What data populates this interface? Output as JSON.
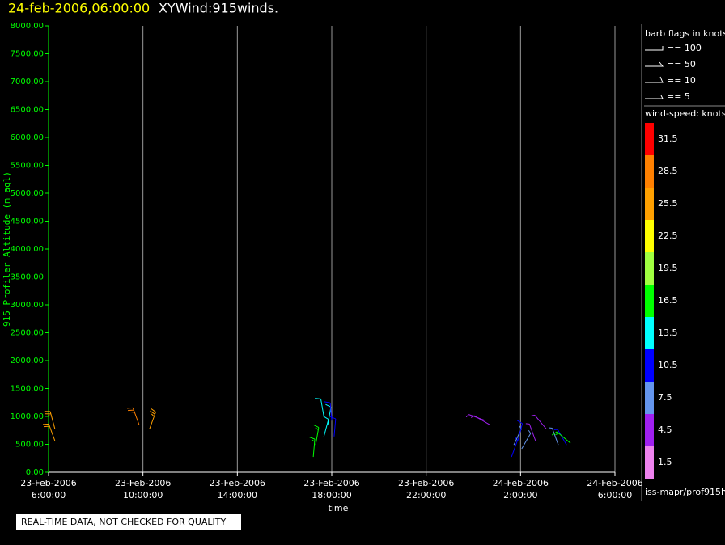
{
  "chart_data": {
    "type": "barbs",
    "title_time": "24-feb-2006,06:00:00",
    "title": "XYWind:915winds.",
    "y_label": "915 Profiler Altitude (m agl)",
    "x_label": "time",
    "xlim": [
      "2006-02-23T06:00",
      "2006-02-24T06:00"
    ],
    "xticks": [
      {
        "value": "2006-02-23T06:00",
        "label": [
          "23-Feb-2006",
          "6:00:00"
        ]
      },
      {
        "value": "2006-02-23T10:00",
        "label": [
          "23-Feb-2006",
          "10:00:00"
        ]
      },
      {
        "value": "2006-02-23T14:00",
        "label": [
          "23-Feb-2006",
          "14:00:00"
        ]
      },
      {
        "value": "2006-02-23T18:00",
        "label": [
          "23-Feb-2006",
          "18:00:00"
        ]
      },
      {
        "value": "2006-02-23T22:00",
        "label": [
          "23-Feb-2006",
          "22:00:00"
        ]
      },
      {
        "value": "2006-02-24T02:00",
        "label": [
          "24-Feb-2006",
          "2:00:00"
        ]
      },
      {
        "value": "2006-02-24T06:00",
        "label": [
          "24-Feb-2006",
          "6:00:00"
        ]
      }
    ],
    "ylim": [
      0,
      8000
    ],
    "yticks": [
      {
        "value": 0,
        "label": "0.00"
      },
      {
        "value": 500,
        "label": "500.00"
      },
      {
        "value": 1000,
        "label": "1000.00"
      },
      {
        "value": 1500,
        "label": "1500.00"
      },
      {
        "value": 2000,
        "label": "2000.00"
      },
      {
        "value": 2500,
        "label": "2500.00"
      },
      {
        "value": 3000,
        "label": "3000.00"
      },
      {
        "value": 3500,
        "label": "3500.00"
      },
      {
        "value": 4000,
        "label": "4000.00"
      },
      {
        "value": 4500,
        "label": "4500.00"
      },
      {
        "value": 5000,
        "label": "5000.00"
      },
      {
        "value": 5500,
        "label": "5500.00"
      },
      {
        "value": 6000,
        "label": "6000.00"
      },
      {
        "value": 6500,
        "label": "6500.00"
      },
      {
        "value": 7000,
        "label": "7000.00"
      },
      {
        "value": 7500,
        "label": "7500.00"
      },
      {
        "value": 8000,
        "label": "8000.00"
      }
    ],
    "grid": true,
    "x": [
      "2006-02-23T06:16",
      "2006-02-23T06:16",
      "2006-02-23T09:50",
      "2006-02-23T10:17",
      "2006-02-23T17:13",
      "2006-02-23T17:19",
      "2006-02-23T17:40",
      "2006-02-23T17:40",
      "2006-02-23T17:50",
      "2006-02-23T18:00",
      "2006-02-23T18:06",
      "2006-02-24T00:31",
      "2006-02-24T00:41",
      "2006-02-24T01:37",
      "2006-02-24T01:43",
      "2006-02-24T01:53",
      "2006-02-24T02:03",
      "2006-02-24T02:38",
      "2006-02-24T03:05",
      "2006-02-24T03:36",
      "2006-02-24T03:57",
      "2006-02-24T04:07"
    ],
    "y": [
      565,
      780,
      855,
      780,
      275,
      490,
      640,
      1000,
      855,
      925,
      640,
      925,
      855,
      275,
      490,
      565,
      420,
      565,
      780,
      490,
      490,
      520
    ],
    "speed": [
      24,
      26,
      27,
      25,
      17,
      16,
      14,
      13,
      12,
      11,
      10,
      5,
      5,
      9,
      8,
      10,
      8,
      5,
      5,
      7,
      9,
      16
    ],
    "direction": [
      340,
      345,
      340,
      20,
      5,
      10,
      15,
      350,
      10,
      355,
      5,
      290,
      300,
      20,
      25,
      15,
      30,
      340,
      320,
      340,
      330,
      310
    ],
    "barb_legend": {
      "title": "barb flags in knots",
      "labels": [
        "== 100",
        "== 50",
        "== 10",
        "== 5"
      ]
    },
    "colorbar": {
      "title": "wind-speed: knots",
      "labels": [
        31.5,
        28.5,
        25.5,
        22.5,
        19.5,
        16.5,
        13.5,
        10.5,
        7.5,
        4.5,
        1.5
      ],
      "colors": [
        "#ff0000",
        "#ff8000",
        "#ffa000",
        "#ffff00",
        "#a0ff40",
        "#00ff00",
        "#00ffff",
        "#0000ff",
        "#6495ed",
        "#a020f0",
        "#ee82ee"
      ]
    },
    "source": "iss-mapr/prof915h",
    "notice": "REAL-TIME DATA, NOT CHECKED FOR QUALITY"
  }
}
